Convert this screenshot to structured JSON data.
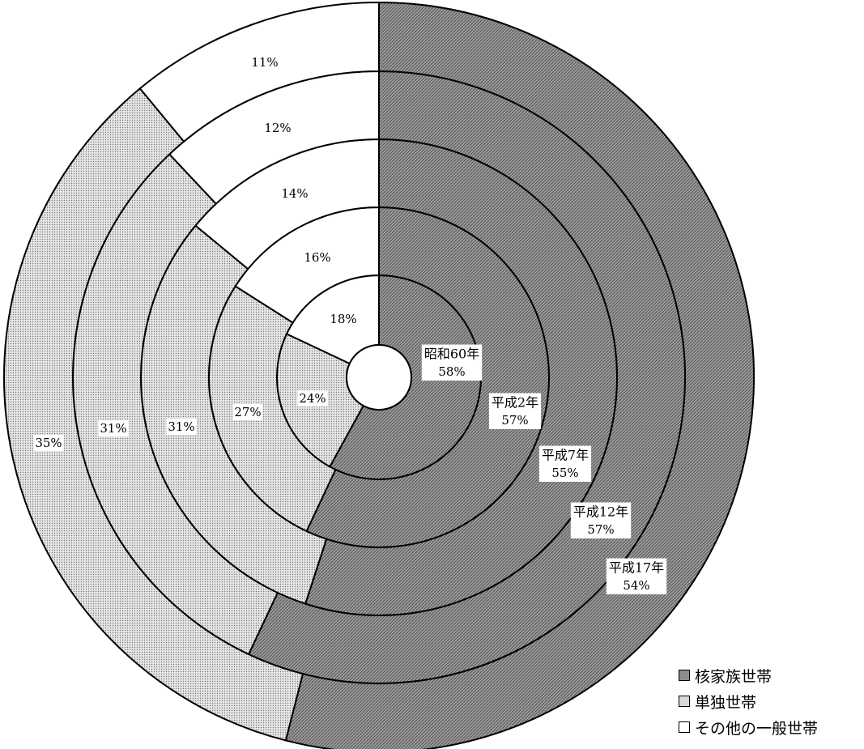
{
  "chart_data": {
    "type": "pie",
    "subtype": "concentric-rings",
    "rings": [
      {
        "name": "昭和60年",
        "values": [
          58,
          24,
          18
        ],
        "labels": [
          "58%",
          "24%",
          "18%"
        ]
      },
      {
        "name": "平成2年",
        "values": [
          57,
          27,
          16
        ],
        "labels": [
          "57%",
          "27%",
          "16%"
        ]
      },
      {
        "name": "平成7年",
        "values": [
          55,
          31,
          14
        ],
        "labels": [
          "55%",
          "31%",
          "14%"
        ]
      },
      {
        "name": "平成12年",
        "values": [
          57,
          31,
          12
        ],
        "labels": [
          "57%",
          "31%",
          "12%"
        ]
      },
      {
        "name": "平成17年",
        "values": [
          54,
          35,
          11
        ],
        "labels": [
          "54%",
          "35%",
          "11%"
        ]
      }
    ],
    "categories": [
      "核家族世帯",
      "単独世帯",
      "その他の一般世帯"
    ],
    "colors": [
      "#8c8c8c",
      "#d8d8d8",
      "#ffffff"
    ],
    "legend_position": "bottom-right"
  },
  "legend": {
    "items": [
      {
        "label": "核家族世帯",
        "color": "#8c8c8c"
      },
      {
        "label": "単独世帯",
        "color": "#d8d8d8"
      },
      {
        "label": "その他の一般世帯",
        "color": "#ffffff"
      }
    ]
  }
}
